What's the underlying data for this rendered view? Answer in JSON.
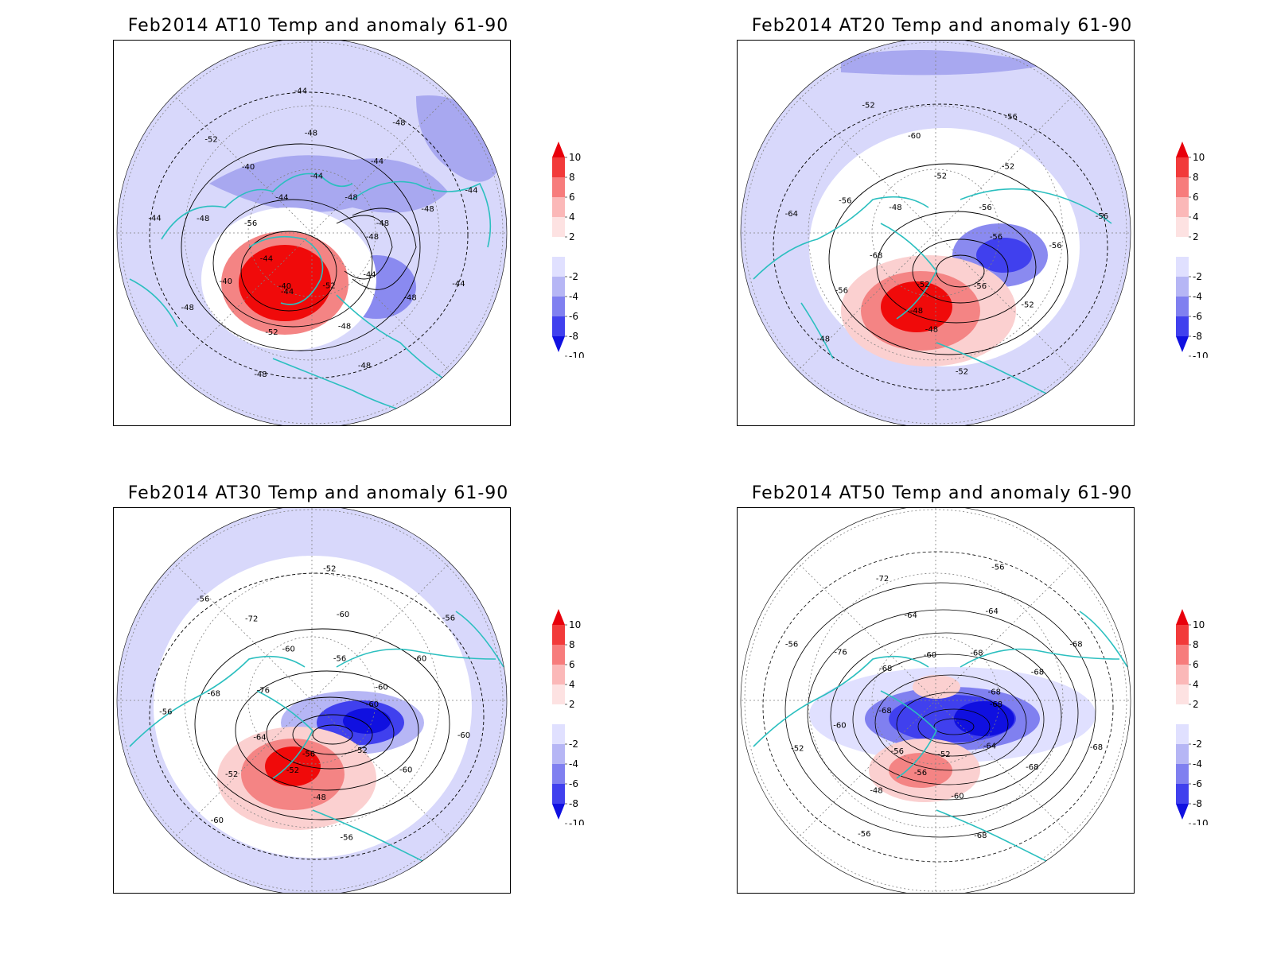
{
  "panels": [
    {
      "id": "at10",
      "title": "Feb2014 AT10 Temp and anomaly 61-90",
      "contour_labels": [
        "-48",
        "-48",
        "-48",
        "-44",
        "-48",
        "-48",
        "-52",
        "-52",
        "-48",
        "-44",
        "-40",
        "-44",
        "-44",
        "-48",
        "-52",
        "-56",
        "-40",
        "-44",
        "-44",
        "-48",
        "-48",
        "-44",
        "-44",
        "-44",
        "-48",
        "-48",
        "-44",
        "-48"
      ],
      "warm_label": "-40"
    },
    {
      "id": "at20",
      "title": "Feb2014 AT20 Temp and anomaly 61-90",
      "contour_labels": [
        "-56",
        "-52",
        "-52",
        "-56",
        "-48",
        "-48",
        "-52",
        "-56",
        "-64",
        "-68",
        "-56",
        "-52",
        "-48",
        "-60",
        "-56",
        "-52",
        "-52",
        "-56",
        "-56",
        "-56"
      ],
      "warm_label": "-48"
    },
    {
      "id": "at30",
      "title": "Feb2014 AT30 Temp and anomaly 61-90",
      "contour_labels": [
        "-60",
        "-60",
        "-56",
        "-52",
        "-48",
        "-60",
        "-56",
        "-52",
        "-56",
        "-64",
        "-68",
        "-56",
        "-76",
        "-72",
        "-52",
        "-60",
        "-60",
        "-56",
        "-56",
        "-60",
        "-60",
        "-60"
      ],
      "warm_label": "-52"
    },
    {
      "id": "at50",
      "title": "Feb2014 AT50 Temp and anomaly 61-90",
      "contour_labels": [
        "-68",
        "-68",
        "-68",
        "-64",
        "-60",
        "-56",
        "-52",
        "-48",
        "-52",
        "-56",
        "-60",
        "-56",
        "-68",
        "-76",
        "-72",
        "-68",
        "-64",
        "-56",
        "-60",
        "-64",
        "-68",
        "-68",
        "-68",
        "-68",
        "-68"
      ],
      "warm_label": "-56"
    }
  ],
  "colorbar": {
    "labels": [
      "10",
      "8",
      "6",
      "4",
      "2",
      "-2",
      "-4",
      "-6",
      "-8",
      "-10"
    ],
    "colors": [
      "#e8000b",
      "#f23a3a",
      "#f77c7c",
      "#fbb8b8",
      "#fde2e2",
      "#ffffff",
      "#e0e0ff",
      "#b6b6f5",
      "#8080f0",
      "#4040ee",
      "#1010e0"
    ]
  },
  "colors": {
    "coastline": "#2bbfbf",
    "contour": "#000000",
    "graticule": "#808080",
    "light_blue": "#d8d8fb",
    "mid_blue": "#a8a8f0",
    "deep_blue": "#2020e8",
    "light_red": "#fbd0d0",
    "mid_red": "#f48484",
    "deep_red": "#f00a0a"
  }
}
